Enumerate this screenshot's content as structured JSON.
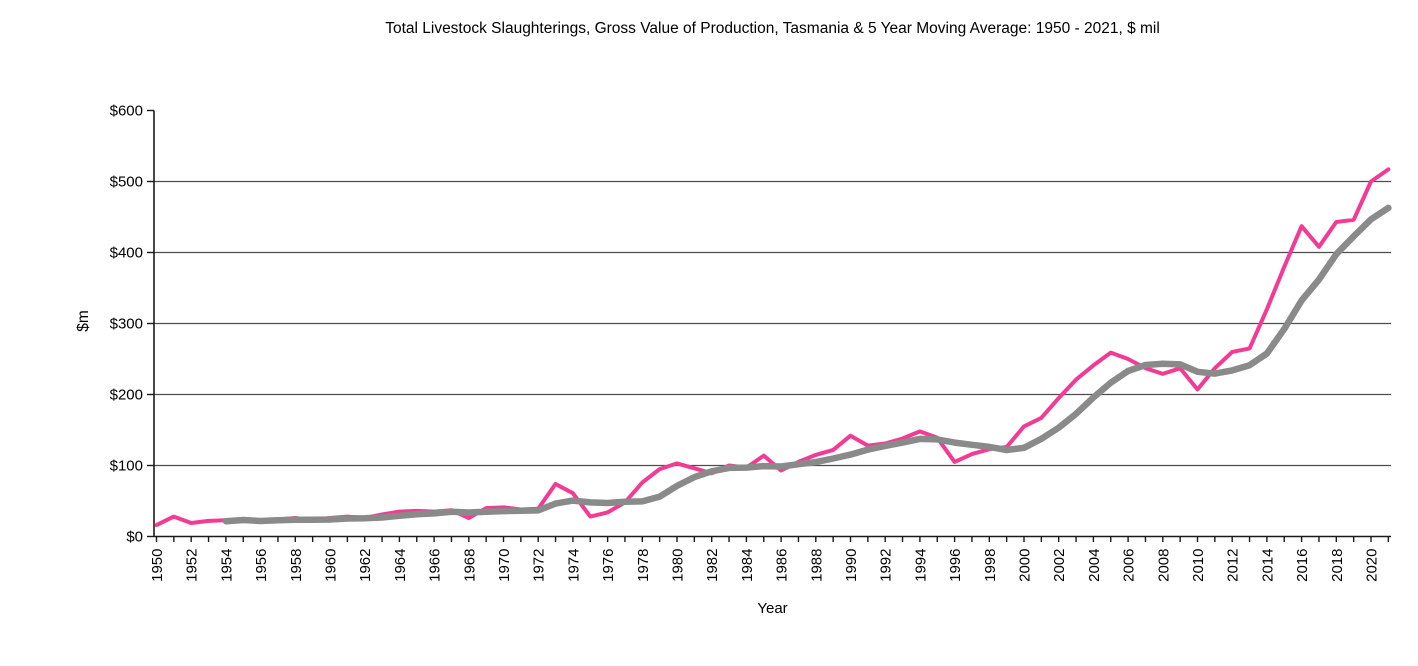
{
  "title": "Total Livestock Slaughterings, Gross Value of Production, Tasmania & 5 Year Moving Average: 1950 - 2021, $ mil",
  "chart_data": {
    "type": "line",
    "title": "Total Livestock Slaughterings, Gross Value of Production, Tasmania & 5 Year Moving Average: 1950 - 2021, $ mil",
    "xlabel": "Year",
    "ylabel": "$m",
    "ylim": [
      0,
      600
    ],
    "y_tick_labels": [
      "$0",
      "$100",
      "$200",
      "$300",
      "$400",
      "$500",
      "$600"
    ],
    "x_tick_labels": [
      "1950",
      "1952",
      "1954",
      "1956",
      "1958",
      "1960",
      "1962",
      "1964",
      "1966",
      "1968",
      "1970",
      "1972",
      "1974",
      "1976",
      "1978",
      "1980",
      "1982",
      "1984",
      "1986",
      "1988",
      "1990",
      "1992",
      "1994",
      "1996",
      "1998",
      "2000",
      "2002",
      "2004",
      "2006",
      "2008",
      "2010",
      "2012",
      "2014",
      "2016",
      "2018",
      "2020"
    ],
    "x_minor_ticks_every": 1,
    "x_range": [
      1950,
      2021
    ],
    "grid": "horizontal",
    "grid_color": "#4d4d4d",
    "axis_color": "#1a1a1a",
    "legend": "none",
    "series": [
      {
        "name": "Gross Value of Production (annual)",
        "color": "#f43b93",
        "stroke_width": 4,
        "x_start": 1950,
        "x_end": 2021,
        "values": [
          16,
          28,
          19,
          22,
          23,
          24,
          21,
          24,
          26,
          23,
          26,
          28,
          26,
          31,
          35,
          36,
          35,
          37,
          26,
          40,
          41,
          38,
          39,
          74,
          61,
          28,
          34,
          48,
          76,
          95,
          103,
          96,
          89,
          100,
          97,
          114,
          93,
          105,
          115,
          122,
          142,
          128,
          131,
          138,
          148,
          139,
          105,
          116,
          123,
          126,
          155,
          167,
          195,
          221,
          241,
          259,
          250,
          237,
          229,
          237,
          207,
          237,
          260,
          265,
          320,
          380,
          437,
          408,
          443,
          446,
          500,
          517
        ]
      },
      {
        "name": "5 Year Moving Average",
        "color": "#8a8a8a",
        "stroke_width": 6.5,
        "x_start": 1954,
        "x_end": 2021,
        "values": [
          21.6,
          23.2,
          21.8,
          22.8,
          23.6,
          23.6,
          24,
          25.4,
          25.8,
          26.8,
          29.2,
          31.2,
          32.6,
          34.8,
          33.8,
          34.8,
          35.8,
          36.4,
          36.8,
          46.4,
          50.6,
          48,
          47.2,
          49,
          49.4,
          56.2,
          71.2,
          83.6,
          91.8,
          96.6,
          97,
          99.2,
          98.6,
          101.8,
          104.8,
          109.8,
          115.4,
          122.4,
          127.6,
          132.2,
          137.4,
          136.8,
          132.2,
          129.2,
          126.2,
          121.8,
          125,
          137.4,
          153.2,
          172.8,
          195.8,
          216.6,
          233.2,
          241.6,
          243.2,
          242.4,
          232,
          229.4,
          234,
          241.2,
          257.8,
          292.4,
          332.4,
          362,
          397.6,
          422.8,
          446.8,
          462.8
        ]
      }
    ]
  }
}
